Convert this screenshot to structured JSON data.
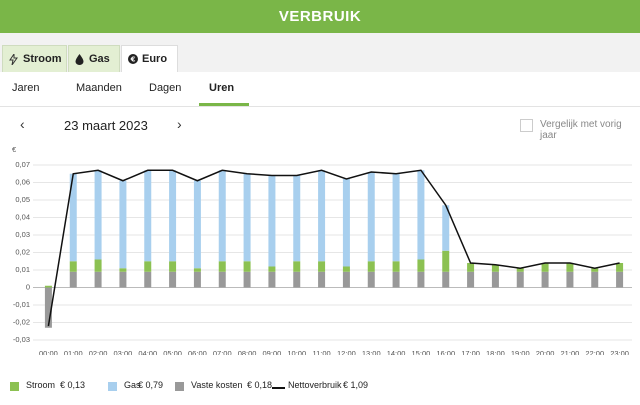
{
  "header": {
    "title": "VERBRUIK"
  },
  "energy_tabs": [
    {
      "label": "Stroom",
      "active": false
    },
    {
      "label": "Gas",
      "active": false
    },
    {
      "label": "Euro",
      "active": true
    }
  ],
  "period_tabs": [
    {
      "label": "Jaren",
      "active": false
    },
    {
      "label": "Maanden",
      "active": false
    },
    {
      "label": "Dagen",
      "active": false
    },
    {
      "label": "Uren",
      "active": true
    }
  ],
  "date": "23 maart 2023",
  "compare": "Vergelijk met vorig jaar",
  "chart_data": {
    "type": "bar",
    "stacked": true,
    "y_label": "€",
    "categories": [
      "00:00",
      "01:00",
      "02:00",
      "03:00",
      "04:00",
      "05:00",
      "06:00",
      "07:00",
      "08:00",
      "09:00",
      "10:00",
      "11:00",
      "12:00",
      "13:00",
      "14:00",
      "15:00",
      "16:00",
      "17:00",
      "18:00",
      "19:00",
      "20:00",
      "21:00",
      "22:00",
      "23:00"
    ],
    "ylim": [
      -0.03,
      0.07
    ],
    "yticks": [
      {
        "value": 0.07,
        "label": "0,07"
      },
      {
        "value": 0.06,
        "label": "0,06"
      },
      {
        "value": 0.05,
        "label": "0,05"
      },
      {
        "value": 0.04,
        "label": "0,04"
      },
      {
        "value": 0.03,
        "label": "0,03"
      },
      {
        "value": 0.02,
        "label": "0,02"
      },
      {
        "value": 0.01,
        "label": "0,01"
      },
      0,
      {
        "value": -0.01,
        "label": "-0,01"
      },
      {
        "value": -0.02,
        "label": "-0,02"
      },
      {
        "value": -0.03,
        "label": "-0,03"
      }
    ],
    "grid": true,
    "series": [
      {
        "name": "Vaste kosten",
        "total": "€ 0,18",
        "type": "bar",
        "color": "#999999",
        "values": [
          -0.023,
          0.009,
          0.009,
          0.009,
          0.009,
          0.009,
          0.009,
          0.009,
          0.009,
          0.009,
          0.009,
          0.009,
          0.009,
          0.009,
          0.009,
          0.009,
          0.009,
          0.009,
          0.009,
          0.009,
          0.009,
          0.009,
          0.009,
          0.009
        ]
      },
      {
        "name": "Stroom",
        "total": "€ 0,13",
        "type": "bar",
        "color": "#8cc152",
        "values": [
          0.001,
          0.006,
          0.007,
          0.002,
          0.006,
          0.006,
          0.002,
          0.006,
          0.006,
          0.003,
          0.006,
          0.006,
          0.003,
          0.006,
          0.006,
          0.007,
          0.012,
          0.005,
          0.004,
          0.002,
          0.005,
          0.005,
          0.002,
          0.005
        ]
      },
      {
        "name": "Gas",
        "total": "€ 0,79",
        "type": "bar",
        "color": "#a8cfee",
        "values": [
          0,
          0.05,
          0.051,
          0.05,
          0.052,
          0.052,
          0.05,
          0.052,
          0.05,
          0.052,
          0.049,
          0.052,
          0.05,
          0.051,
          0.05,
          0.051,
          0.026,
          0,
          0,
          0,
          0,
          0,
          0,
          0
        ]
      },
      {
        "name": "Nettoverbruik",
        "total": "€ 1,09",
        "type": "line",
        "color": "#111111",
        "values": [
          -0.022,
          0.065,
          0.067,
          0.061,
          0.067,
          0.067,
          0.061,
          0.067,
          0.065,
          0.064,
          0.064,
          0.067,
          0.062,
          0.066,
          0.065,
          0.067,
          0.047,
          0.014,
          0.013,
          0.011,
          0.014,
          0.014,
          0.011,
          0.014
        ]
      }
    ]
  }
}
